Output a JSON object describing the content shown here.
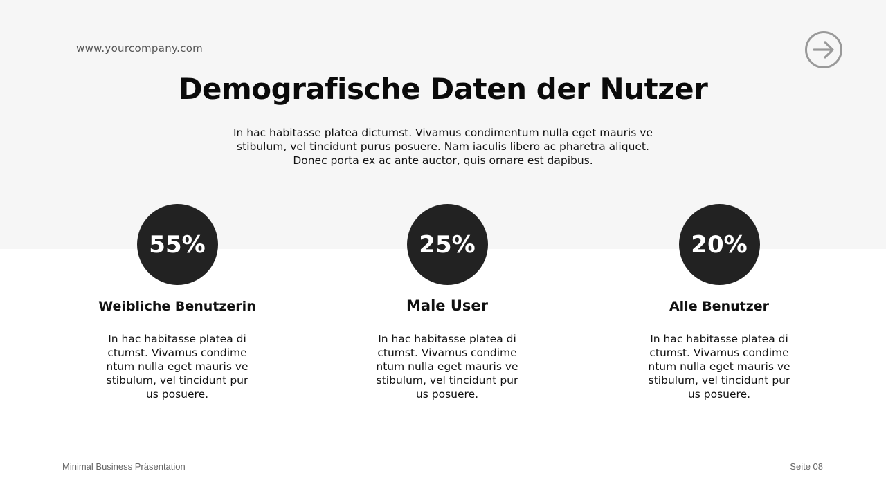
{
  "header": {
    "url": "www.yourcompany.com",
    "next_icon": "arrow-right-circle-icon"
  },
  "title": "Demografische Daten der Nutzer",
  "intro": "In hac habitasse platea dictumst. Vivamus condimentum nulla eget mauris ve stibulum, vel tincidunt purus posuere. Nam iaculis libero ac pharetra aliquet. Donec porta ex ac ante auctor, quis ornare est dapibus.",
  "stats": [
    {
      "value": "55%",
      "label": "Weibliche Benutzerin",
      "text": "In hac habitasse platea di ctumst. Vivamus condime ntum nulla eget mauris ve stibulum, vel tincidunt pur us posuere."
    },
    {
      "value": "25%",
      "label": "Male User",
      "text": "In hac habitasse platea di ctumst. Vivamus condime ntum nulla eget mauris ve stibulum, vel tincidunt pur us posuere."
    },
    {
      "value": "20%",
      "label": "Alle Benutzer",
      "text": "In hac habitasse platea di ctumst. Vivamus condime ntum nulla eget mauris ve stibulum, vel tincidunt pur us posuere."
    }
  ],
  "footer": {
    "left": "Minimal Business Präsentation",
    "right": "Seite 08"
  },
  "colors": {
    "band": "#f6f6f6",
    "circle": "#222222",
    "icon": "#999999"
  }
}
